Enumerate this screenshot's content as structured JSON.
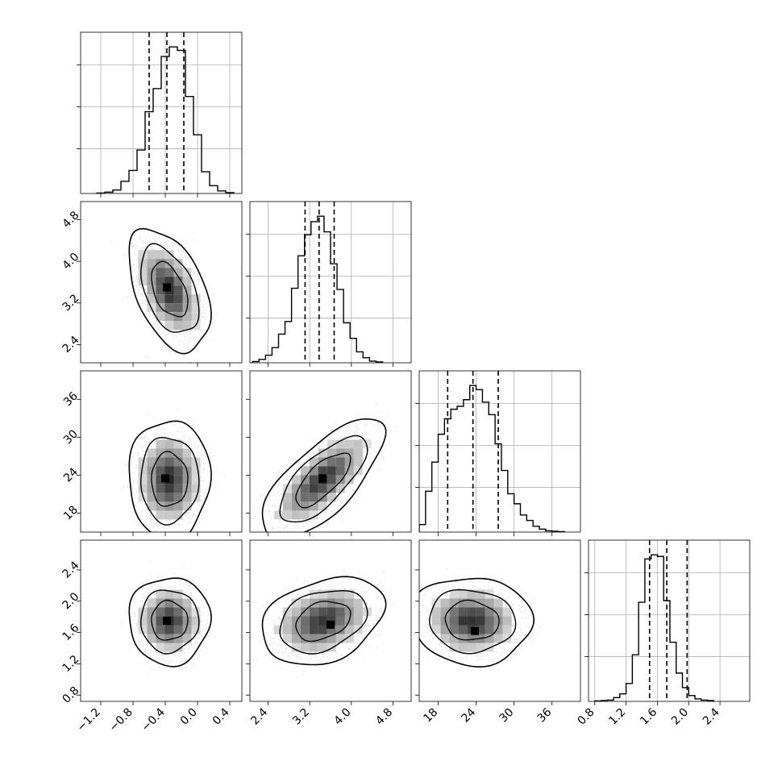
{
  "chart_data": {
    "type": "corner",
    "grid": true,
    "quantile_lines": "dashed",
    "parameters": [
      {
        "range": [
          -1.45,
          0.55
        ],
        "ticks": [
          "−1.2",
          "−0.8",
          "−0.4",
          "0.0",
          "0.4"
        ],
        "tick_values": [
          -1.2,
          -0.8,
          -0.4,
          0.0,
          0.4
        ],
        "quantiles": [
          -0.6,
          -0.38,
          -0.17
        ],
        "histogram": {
          "bin_start": -1.25,
          "bin_width": 0.1,
          "counts": [
            1,
            3,
            8,
            28,
            53,
            100,
            188,
            241,
            315,
            337,
            329,
            223,
            135,
            50,
            18,
            6,
            2
          ]
        }
      },
      {
        "range": [
          2.05,
          5.15
        ],
        "ticks": [
          "2.4",
          "3.2",
          "4.0",
          "4.8"
        ],
        "tick_values": [
          2.4,
          3.2,
          4.0,
          4.8
        ],
        "quantiles": [
          3.11,
          3.38,
          3.67
        ],
        "histogram": {
          "bin_start": 2.1,
          "bin_width": 0.125,
          "counts": [
            3,
            8,
            18,
            36,
            68,
            98,
            177,
            254,
            304,
            335,
            348,
            311,
            235,
            174,
            95,
            58,
            26,
            12,
            4,
            2
          ]
        }
      },
      {
        "range": [
          15.0,
          40.5
        ],
        "ticks": [
          "18",
          "24",
          "30",
          "36"
        ],
        "tick_values": [
          18,
          24,
          30,
          36
        ],
        "quantiles": [
          19.5,
          23.5,
          27.5
        ],
        "histogram": {
          "bin_start": 15.0,
          "bin_width": 1.0,
          "counts": [
            18,
            98,
            168,
            235,
            272,
            295,
            302,
            318,
            352,
            342,
            312,
            282,
            212,
            148,
            92,
            68,
            41,
            28,
            14,
            7,
            3,
            2,
            1
          ]
        }
      },
      {
        "range": [
          0.72,
          2.78
        ],
        "ticks": [
          "0.8",
          "1.2",
          "1.6",
          "2.0",
          "2.4"
        ],
        "tick_values": [
          0.8,
          1.2,
          1.6,
          2.0,
          2.4
        ],
        "quantiles": [
          1.5,
          1.72,
          1.98
        ],
        "histogram": {
          "bin_start": 0.8,
          "bin_width": 0.08,
          "counts": [
            1,
            2,
            3,
            9,
            18,
            43,
            112,
            238,
            342,
            352,
            348,
            242,
            142,
            68,
            33,
            14,
            6,
            3,
            2
          ]
        }
      }
    ],
    "pairs": [
      {
        "row": 1,
        "col": 0,
        "mean": [
          -0.35,
          3.45
        ],
        "sd": [
          0.18,
          0.42
        ],
        "rho": -0.45,
        "mode": [
          -0.38,
          3.5
        ]
      },
      {
        "row": 2,
        "col": 0,
        "mean": [
          -0.35,
          23.3
        ],
        "sd": [
          0.18,
          3.4
        ],
        "rho": 0.0,
        "mode": [
          -0.4,
          23.5
        ]
      },
      {
        "row": 2,
        "col": 1,
        "mean": [
          3.45,
          23.3
        ],
        "sd": [
          0.42,
          3.4
        ],
        "rho": 0.72,
        "mode": [
          3.45,
          23.5
        ]
      },
      {
        "row": 3,
        "col": 0,
        "mean": [
          -0.35,
          1.75
        ],
        "sd": [
          0.18,
          0.2
        ],
        "rho": 0.0,
        "mode": [
          -0.38,
          1.75
        ]
      },
      {
        "row": 3,
        "col": 1,
        "mean": [
          3.45,
          1.75
        ],
        "sd": [
          0.42,
          0.2
        ],
        "rho": 0.3,
        "mode": [
          3.6,
          1.7
        ]
      },
      {
        "row": 3,
        "col": 2,
        "mean": [
          23.3,
          1.75
        ],
        "sd": [
          3.4,
          0.2
        ],
        "rho": -0.05,
        "mode": [
          23.8,
          1.62
        ]
      }
    ]
  }
}
